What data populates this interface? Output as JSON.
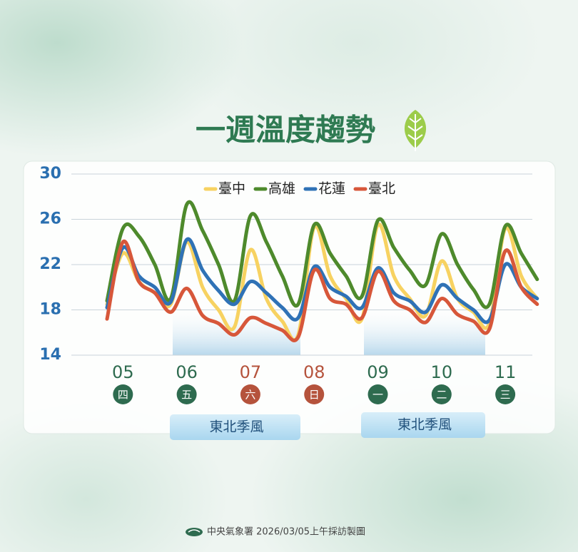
{
  "chart_data": {
    "type": "line",
    "title": "一週溫度趨勢",
    "categories": [
      null,
      "05",
      null,
      null,
      null,
      "06",
      null,
      null,
      null,
      "07",
      null,
      null,
      null,
      "08",
      null,
      null,
      null,
      "09",
      null,
      null,
      null,
      "10",
      null,
      null,
      null,
      "11",
      null,
      null
    ],
    "weekday_labels": [
      "四",
      "五",
      "六",
      "日",
      "一",
      "二",
      "三"
    ],
    "day_colors": [
      "#2e6b4f",
      "#2e6b4f",
      "#b5533c",
      "#b5533c",
      "#2e6b4f",
      "#2e6b4f",
      "#2e6b4f"
    ],
    "series": [
      {
        "name": "臺中",
        "color": "#f7d261",
        "values": [
          18.5,
          23,
          20.5,
          19.5,
          18.5,
          24,
          20,
          18,
          16.5,
          23.3,
          19,
          17,
          15.8,
          25.3,
          21,
          19,
          17.2,
          25.5,
          21,
          19,
          17.5,
          22.3,
          19,
          17.8,
          16.8,
          25.2,
          21,
          19
        ]
      },
      {
        "name": "高雄",
        "color": "#4e8a2c",
        "values": [
          18.8,
          25.2,
          24.5,
          22,
          19,
          27.3,
          25,
          22,
          18.8,
          26.3,
          24,
          21,
          18.5,
          25.5,
          23,
          21,
          19.2,
          25.9,
          23.5,
          21.5,
          20.2,
          24.7,
          22,
          19.8,
          18.5,
          25.4,
          23,
          20.7
        ]
      },
      {
        "name": "花蓮",
        "color": "#2f72b6",
        "values": [
          18.2,
          23.5,
          21,
          20,
          18.7,
          24.2,
          21.5,
          19.7,
          18.5,
          20.5,
          19.5,
          18.2,
          17.3,
          21.8,
          20,
          19.2,
          18.2,
          21.7,
          19.5,
          18.8,
          17.8,
          20.2,
          19,
          18,
          17.1,
          22,
          20,
          19
        ]
      },
      {
        "name": "臺北",
        "color": "#d7573a",
        "values": [
          17.2,
          24,
          20.5,
          19.5,
          17.8,
          19.9,
          17.5,
          16.8,
          15.8,
          17.3,
          16.8,
          16.2,
          15.6,
          21.5,
          19,
          18.5,
          17.3,
          21.4,
          18.8,
          18,
          16.9,
          19,
          17.6,
          17,
          16.3,
          23.2,
          20,
          18.5
        ]
      }
    ],
    "ylim": [
      14,
      30
    ],
    "yticks": [
      14,
      18,
      22,
      26,
      30
    ],
    "grid": true,
    "annotations": [
      "東北季風",
      "東北季風"
    ],
    "footer": "中央氣象署 2026/03/05上午採訪製圖"
  }
}
